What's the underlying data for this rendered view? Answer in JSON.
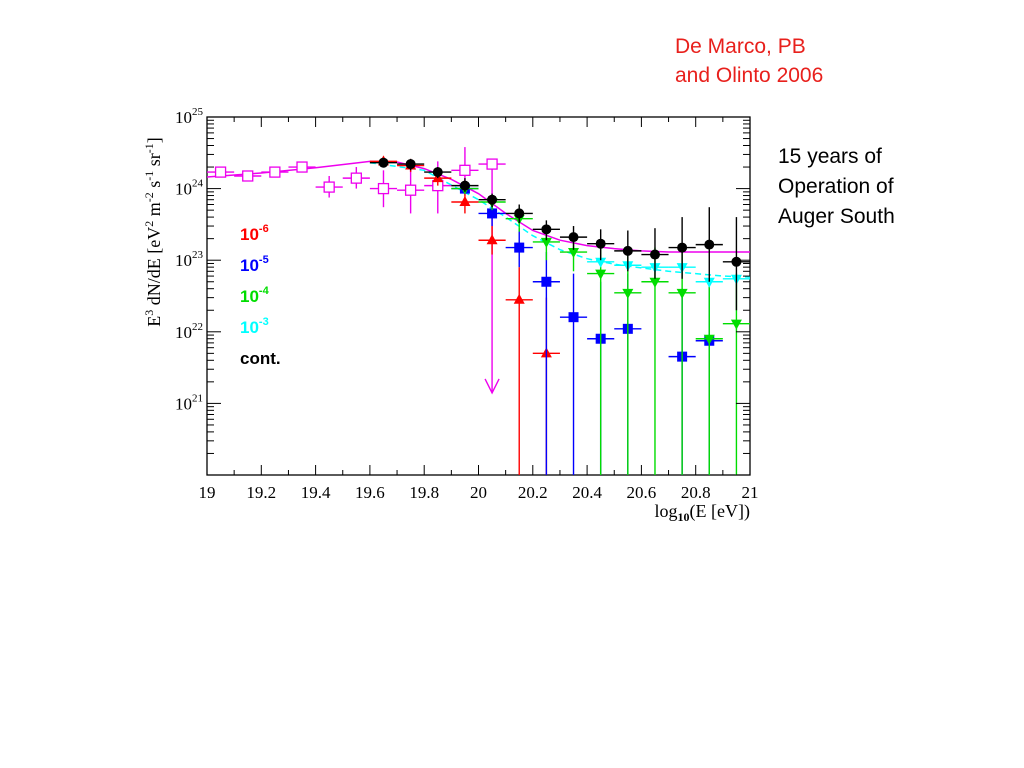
{
  "citation": {
    "line1": "De Marco, PB",
    "line2": "and Olinto 2006"
  },
  "note": {
    "line1": "15 years of",
    "line2": "Operation of",
    "line3": "Auger South"
  },
  "chart_data": {
    "type": "scatter",
    "title": "",
    "xlabel": "log10(E [eV])",
    "ylabel": "E^3 dN/dE [eV^2 m^-2 s^-1 sr^-1]",
    "xlim": [
      19,
      21
    ],
    "ylim": [
      1e+20,
      1e+25
    ],
    "yscale": "log",
    "grid": false,
    "legend_position": "left",
    "x_ticks": [
      "19",
      "19.2",
      "19.4",
      "19.6",
      "19.8",
      "20",
      "20.2",
      "20.4",
      "20.6",
      "20.8",
      "21"
    ],
    "y_ticks": [
      {
        "base": "10",
        "exp": "21",
        "value": 1e+21
      },
      {
        "base": "10",
        "exp": "22",
        "value": 1e+22
      },
      {
        "base": "10",
        "exp": "23",
        "value": 1e+23
      },
      {
        "base": "10",
        "exp": "24",
        "value": 1e+24
      },
      {
        "base": "10",
        "exp": "25",
        "value": 1e+25
      }
    ],
    "legend": [
      {
        "base": "10",
        "exp": "-6",
        "color": "#ff0000"
      },
      {
        "base": "10",
        "exp": "-5",
        "color": "#0000ff"
      },
      {
        "base": "10",
        "exp": "-4",
        "color": "#00dd00"
      },
      {
        "base": "10",
        "exp": "-3",
        "color": "#00ffff"
      },
      {
        "base": "cont.",
        "exp": "",
        "color": "#000000"
      }
    ],
    "series": [
      {
        "marker": "open-square",
        "color": "#ee00ee",
        "points": [
          {
            "x": 19.05,
            "y": 1.7e+24
          },
          {
            "x": 19.15,
            "y": 1.5e+24
          },
          {
            "x": 19.25,
            "y": 1.7e+24
          },
          {
            "x": 19.35,
            "y": 2e+24
          },
          {
            "x": 19.45,
            "y": 1.05e+24,
            "ylo": 7.5e+23,
            "yhi": 1.5e+24
          },
          {
            "x": 19.55,
            "y": 1.4e+24,
            "ylo": 1e+24,
            "yhi": 2e+24
          },
          {
            "x": 19.65,
            "y": 1e+24,
            "ylo": 5.5e+23,
            "yhi": 1.8e+24
          },
          {
            "x": 19.75,
            "y": 9.5e+23,
            "ylo": 4.5e+23,
            "yhi": 2e+24
          },
          {
            "x": 19.85,
            "y": 1.1e+24,
            "ylo": 4.5e+23,
            "yhi": 2.4e+24
          },
          {
            "x": 19.95,
            "y": 1.8e+24,
            "ylo": 8e+23,
            "yhi": 3.8e+24
          },
          {
            "x": 20.05,
            "y": 2.2e+24,
            "arrow_to": 1.4e+21
          }
        ]
      },
      {
        "marker": "triangle-up",
        "color": "#ff0000",
        "points": [
          {
            "x": 19.65,
            "y": 2.4e+24
          },
          {
            "x": 19.75,
            "y": 2.1e+24,
            "ylo": 1.7e+24,
            "yhi": 2.6e+24
          },
          {
            "x": 19.85,
            "y": 1.4e+24,
            "ylo": 1.1e+24,
            "yhi": 1.8e+24
          },
          {
            "x": 19.95,
            "y": 6.5e+23,
            "ylo": 4.5e+23,
            "yhi": 9e+23
          },
          {
            "x": 20.05,
            "y": 1.9e+23,
            "ylo": 1.2e+23,
            "yhi": 3e+23
          },
          {
            "x": 20.15,
            "y": 2.8e+22,
            "ylo": 1e+20,
            "yhi": 8e+22
          },
          {
            "x": 20.25,
            "y": 5e+21,
            "ylo": 1e+20,
            "yhi": 3e+22
          }
        ]
      },
      {
        "marker": "square",
        "color": "#0000ff",
        "points": [
          {
            "x": 19.95,
            "y": 1e+24
          },
          {
            "x": 20.05,
            "y": 4.5e+23,
            "ylo": 3e+23,
            "yhi": 6.5e+23
          },
          {
            "x": 20.15,
            "y": 1.5e+23,
            "ylo": 8e+22,
            "yhi": 2.8e+23
          },
          {
            "x": 20.25,
            "y": 5e+22,
            "ylo": 1e+20,
            "yhi": 1.3e+23
          },
          {
            "x": 20.35,
            "y": 1.6e+22,
            "ylo": 1e+20,
            "yhi": 6.5e+22
          },
          {
            "x": 20.45,
            "y": 8e+21,
            "ylo": 1e+20,
            "yhi": 5e+22
          },
          {
            "x": 20.55,
            "y": 1.1e+22,
            "ylo": 1e+20,
            "yhi": 6.5e+22
          },
          {
            "x": 20.75,
            "y": 4.5e+21,
            "ylo": 1e+20,
            "yhi": 4e+22
          },
          {
            "x": 20.85,
            "y": 7.5e+21,
            "ylo": 1e+20,
            "yhi": 5.5e+22
          }
        ]
      },
      {
        "marker": "triangle-down",
        "color": "#00dd00",
        "points": [
          {
            "x": 19.95,
            "y": 1e+24
          },
          {
            "x": 20.05,
            "y": 6.5e+23,
            "ylo": 5e+23,
            "yhi": 8e+23
          },
          {
            "x": 20.15,
            "y": 3.8e+23,
            "ylo": 2.5e+23,
            "yhi": 5.5e+23
          },
          {
            "x": 20.25,
            "y": 1.8e+23,
            "ylo": 1e+23,
            "yhi": 2.8e+23
          },
          {
            "x": 20.35,
            "y": 1.3e+23,
            "ylo": 7e+22,
            "yhi": 2.2e+23
          },
          {
            "x": 20.45,
            "y": 6.5e+22,
            "ylo": 1e+20,
            "yhi": 1.5e+23
          },
          {
            "x": 20.55,
            "y": 3.5e+22,
            "ylo": 1e+20,
            "yhi": 1.4e+23
          },
          {
            "x": 20.65,
            "y": 5e+22,
            "ylo": 1e+20,
            "yhi": 1.5e+23
          },
          {
            "x": 20.75,
            "y": 3.5e+22,
            "ylo": 1e+20,
            "yhi": 1.4e+23
          },
          {
            "x": 20.85,
            "y": 8e+21,
            "ylo": 1e+20,
            "yhi": 5.5e+22
          },
          {
            "x": 20.95,
            "y": 1.3e+22,
            "ylo": 1e+20,
            "yhi": 6.5e+22
          }
        ]
      },
      {
        "marker": "triangle-down",
        "color": "#00ffff",
        "points": [
          {
            "x": 20.45,
            "y": 9.5e+22
          },
          {
            "x": 20.55,
            "y": 8.5e+22
          },
          {
            "x": 20.65,
            "y": 8e+22
          },
          {
            "x": 20.75,
            "y": 8e+22
          },
          {
            "x": 20.85,
            "y": 5e+22
          },
          {
            "x": 20.95,
            "y": 5.5e+22
          }
        ]
      },
      {
        "marker": "circle",
        "color": "#000000",
        "points": [
          {
            "x": 19.65,
            "y": 2.3e+24
          },
          {
            "x": 19.75,
            "y": 2.2e+24,
            "ylo": 1.8e+24,
            "yhi": 2.6e+24
          },
          {
            "x": 19.85,
            "y": 1.7e+24,
            "ylo": 1.4e+24,
            "yhi": 2e+24
          },
          {
            "x": 19.95,
            "y": 1.1e+24,
            "ylo": 9e+23,
            "yhi": 1.4e+24
          },
          {
            "x": 20.05,
            "y": 7e+23,
            "ylo": 5.5e+23,
            "yhi": 8.5e+23
          },
          {
            "x": 20.15,
            "y": 4.5e+23,
            "ylo": 3.3e+23,
            "yhi": 6e+23
          },
          {
            "x": 20.25,
            "y": 2.7e+23,
            "ylo": 1.9e+23,
            "yhi": 3.6e+23
          },
          {
            "x": 20.35,
            "y": 2.1e+23,
            "ylo": 1.4e+23,
            "yhi": 3e+23
          },
          {
            "x": 20.45,
            "y": 1.7e+23,
            "ylo": 1e+23,
            "yhi": 2.7e+23
          },
          {
            "x": 20.55,
            "y": 1.35e+23,
            "ylo": 7e+22,
            "yhi": 2.6e+23
          },
          {
            "x": 20.65,
            "y": 1.2e+23,
            "ylo": 5.5e+22,
            "yhi": 2.8e+23
          },
          {
            "x": 20.75,
            "y": 1.5e+23,
            "ylo": 5.5e+22,
            "yhi": 4e+23
          },
          {
            "x": 20.85,
            "y": 1.65e+23,
            "ylo": 5e+22,
            "yhi": 5.5e+23
          },
          {
            "x": 20.95,
            "y": 9.5e+22,
            "ylo": 2e+22,
            "yhi": 4e+23
          }
        ]
      }
    ],
    "curves": [
      {
        "color": "#ee00ee",
        "style": "solid",
        "points": [
          [
            19.0,
            1.45e+24
          ],
          [
            19.2,
            1.65e+24
          ],
          [
            19.4,
            1.95e+24
          ],
          [
            19.6,
            2.4e+24
          ],
          [
            19.7,
            2.35e+24
          ],
          [
            19.8,
            1.9e+24
          ],
          [
            19.9,
            1.35e+24
          ],
          [
            20.0,
            8.5e+23
          ],
          [
            20.1,
            4.5e+23
          ],
          [
            20.2,
            2.6e+23
          ],
          [
            20.3,
            1.9e+23
          ],
          [
            20.4,
            1.6e+23
          ],
          [
            20.5,
            1.45e+23
          ],
          [
            20.6,
            1.35e+23
          ],
          [
            20.7,
            1.3e+23
          ],
          [
            20.8,
            1.3e+23
          ],
          [
            20.9,
            1.3e+23
          ],
          [
            21.0,
            1.3e+23
          ]
        ]
      },
      {
        "color": "#00ffff",
        "style": "dashed",
        "points": [
          [
            19.6,
            2.3e+24
          ],
          [
            19.8,
            1.8e+24
          ],
          [
            20.0,
            7e+23
          ],
          [
            20.1,
            4e+23
          ],
          [
            20.2,
            2.2e+23
          ],
          [
            20.3,
            1.4e+23
          ],
          [
            20.4,
            1.05e+23
          ],
          [
            20.5,
            8.8e+22
          ],
          [
            20.6,
            7.8e+22
          ],
          [
            20.7,
            7e+22
          ],
          [
            20.8,
            6.5e+22
          ],
          [
            20.9,
            6e+22
          ],
          [
            21.0,
            5.8e+22
          ]
        ]
      }
    ]
  }
}
